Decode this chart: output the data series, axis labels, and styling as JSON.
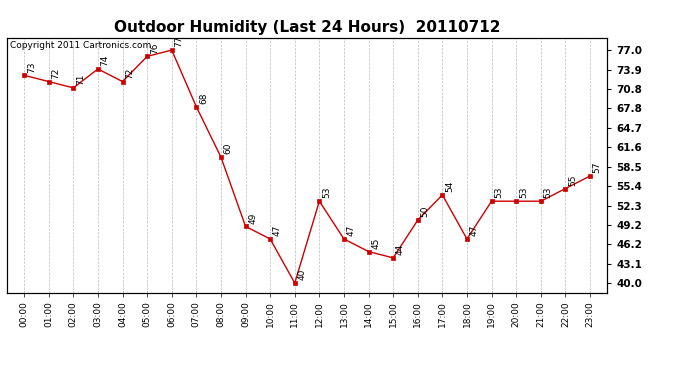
{
  "title": "Outdoor Humidity (Last 24 Hours)  20110712",
  "copyright_text": "Copyright 2011 Cartronics.com",
  "hours": [
    "00:00",
    "01:00",
    "02:00",
    "03:00",
    "04:00",
    "05:00",
    "06:00",
    "07:00",
    "08:00",
    "09:00",
    "10:00",
    "11:00",
    "12:00",
    "13:00",
    "14:00",
    "15:00",
    "16:00",
    "17:00",
    "18:00",
    "19:00",
    "20:00",
    "21:00",
    "22:00",
    "23:00"
  ],
  "values": [
    73,
    72,
    71,
    74,
    72,
    76,
    77,
    68,
    60,
    49,
    47,
    40,
    53,
    47,
    45,
    44,
    50,
    54,
    47,
    53,
    53,
    53,
    55,
    57
  ],
  "line_color": "#cc0000",
  "marker_color": "#cc0000",
  "background_color": "#ffffff",
  "grid_color": "#bbbbbb",
  "title_fontsize": 11,
  "yticks": [
    40.0,
    43.1,
    46.2,
    49.2,
    52.3,
    55.4,
    58.5,
    61.6,
    64.7,
    67.8,
    70.8,
    73.9,
    77.0
  ],
  "ylim": [
    38.5,
    79.0
  ],
  "annotation_fontsize": 6.5,
  "copyright_fontsize": 6.5,
  "xtick_fontsize": 6.5,
  "ytick_fontsize": 7.5
}
